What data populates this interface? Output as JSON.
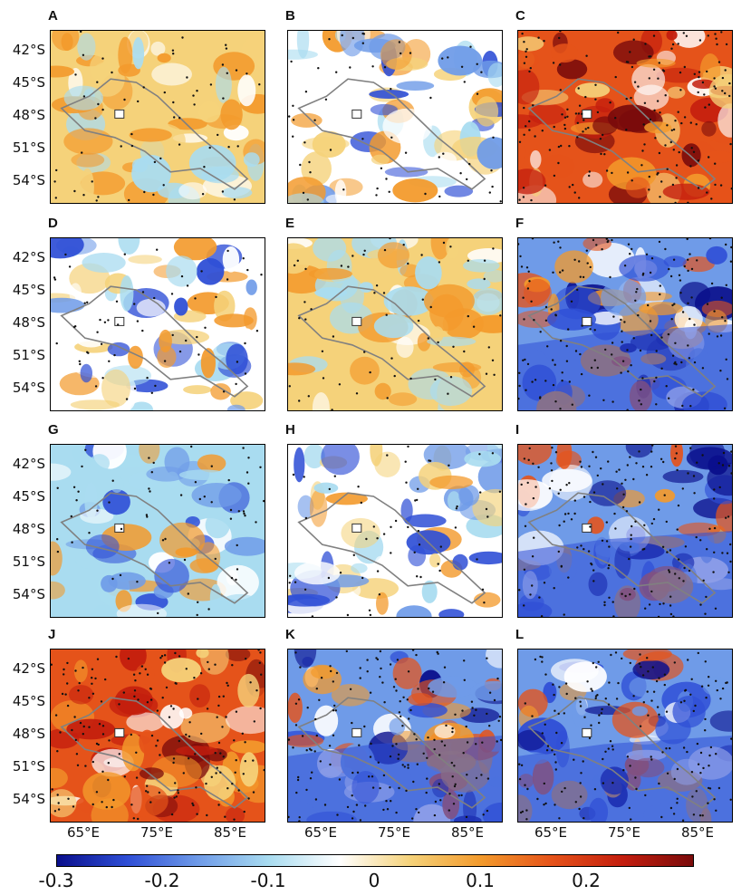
{
  "panels": [
    {
      "letter": "A",
      "tint": "warm"
    },
    {
      "letter": "B",
      "tint": "mixed"
    },
    {
      "letter": "C",
      "tint": "hot"
    },
    {
      "letter": "D",
      "tint": "mixed"
    },
    {
      "letter": "E",
      "tint": "warm"
    },
    {
      "letter": "F",
      "tint": "split"
    },
    {
      "letter": "G",
      "tint": "cool"
    },
    {
      "letter": "H",
      "tint": "mixed"
    },
    {
      "letter": "I",
      "tint": "split"
    },
    {
      "letter": "J",
      "tint": "hot"
    },
    {
      "letter": "K",
      "tint": "split"
    },
    {
      "letter": "L",
      "tint": "split"
    }
  ],
  "latitude_labels": [
    "42°S",
    "45°S",
    "48°S",
    "51°S",
    "54°S"
  ],
  "longitude_labels": [
    "65°E",
    "75°E",
    "85°E"
  ],
  "colorbar": {
    "tick_labels": [
      "-0.3",
      "-0.2",
      "-0.1",
      "0",
      "0.1",
      "0.2"
    ],
    "range": [
      -0.3,
      0.3
    ],
    "colors": [
      "#0a0f8c",
      "#2f4fd6",
      "#6f9be8",
      "#a9dcf0",
      "#ffffff",
      "#f5d27a",
      "#f39a2c",
      "#e5531a",
      "#c41e0e",
      "#7a0b0b"
    ]
  },
  "palette": {
    "coastline": "#808080",
    "stipple": "#111111"
  }
}
